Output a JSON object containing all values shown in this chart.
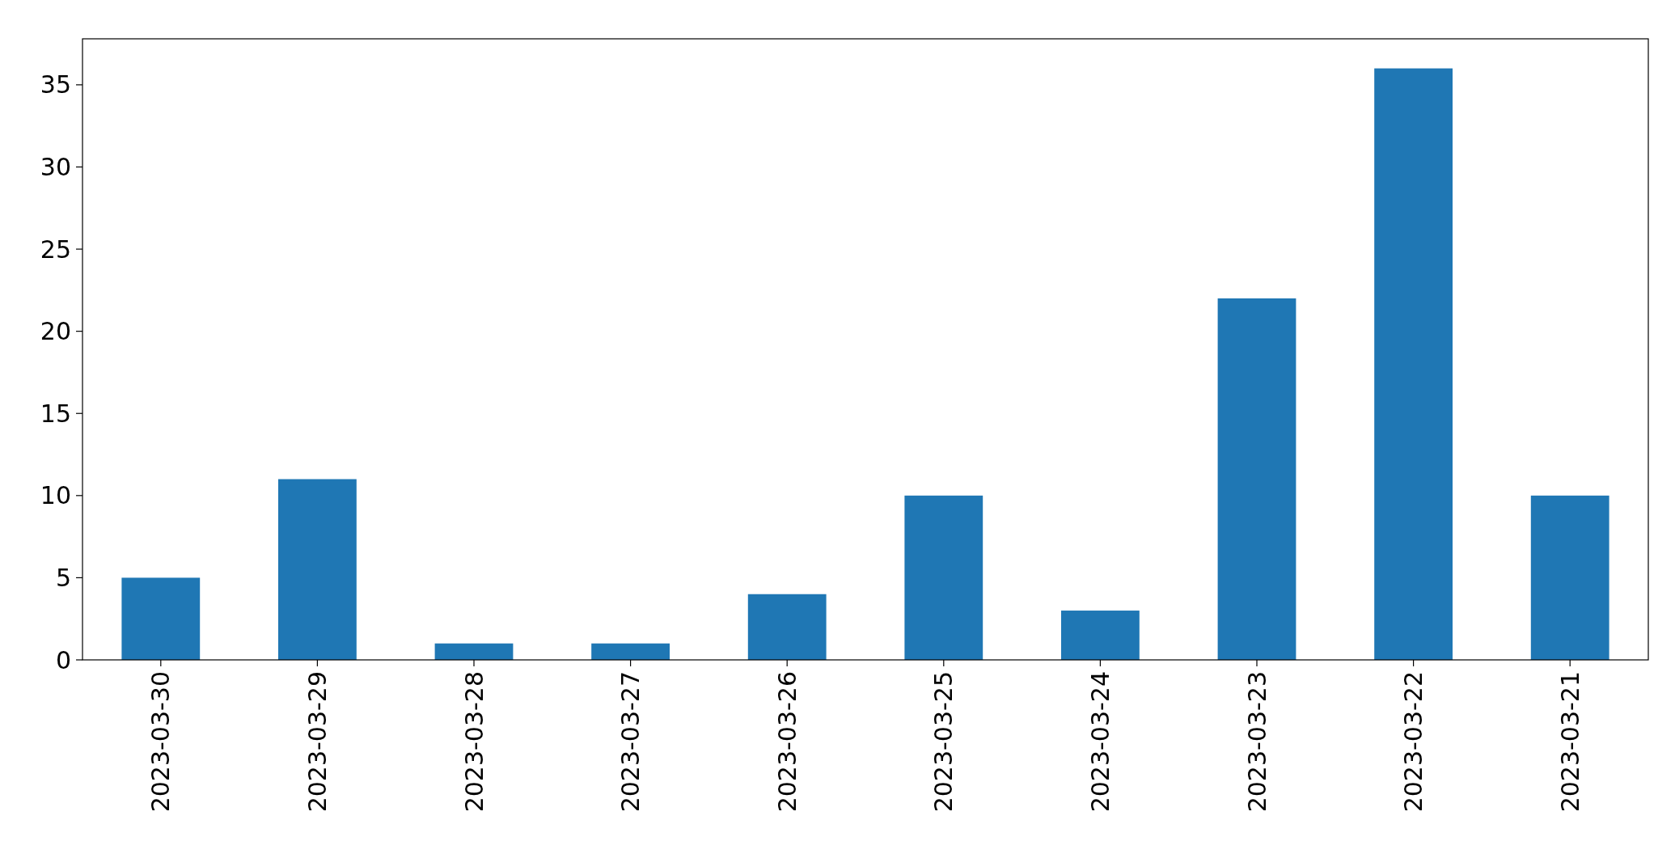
{
  "chart_data": {
    "type": "bar",
    "categories": [
      "2023-03-30",
      "2023-03-29",
      "2023-03-28",
      "2023-03-27",
      "2023-03-26",
      "2023-03-25",
      "2023-03-24",
      "2023-03-23",
      "2023-03-22",
      "2023-03-21"
    ],
    "values": [
      5,
      11,
      1,
      1,
      4,
      10,
      3,
      22,
      36,
      10
    ],
    "color": "#1f77b4",
    "ylim": [
      0,
      37.8
    ],
    "yticks": [
      0,
      5,
      10,
      15,
      20,
      25,
      30,
      35
    ],
    "grid": false
  }
}
